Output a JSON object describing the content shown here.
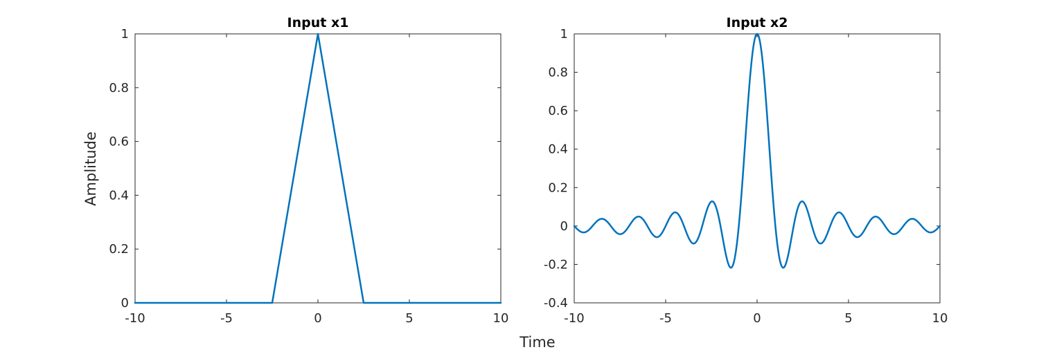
{
  "figure": {
    "background": "#ffffff",
    "shared_xlabel": "Time",
    "shared_ylabel": "Amplitude"
  },
  "chart_data": [
    {
      "type": "line",
      "title": "Input x1",
      "xlabel": "",
      "ylabel": "Amplitude",
      "xlim": [
        -10,
        10
      ],
      "ylim": [
        0,
        1
      ],
      "xticks": [
        -10,
        -5,
        0,
        5,
        10
      ],
      "xtick_labels": [
        "-10",
        "-5",
        "0",
        "5",
        "10"
      ],
      "yticks": [
        0,
        0.2,
        0.4,
        0.6,
        0.8,
        1
      ],
      "ytick_labels": [
        "0",
        "0.2",
        "0.4",
        "0.6",
        "0.8",
        "1"
      ],
      "grid": false,
      "series": [
        {
          "color": "#0072bd",
          "x": [
            -10,
            -2.5,
            0,
            2.5,
            10
          ],
          "y": [
            0,
            0,
            1,
            0,
            0
          ]
        }
      ]
    },
    {
      "type": "line",
      "title": "Input x2",
      "xlabel": "Time",
      "ylabel": "",
      "xlim": [
        -10,
        10
      ],
      "ylim": [
        -0.4,
        1
      ],
      "xticks": [
        -10,
        -5,
        0,
        5,
        10
      ],
      "xtick_labels": [
        "-10",
        "-5",
        "0",
        "5",
        "10"
      ],
      "yticks": [
        -0.4,
        -0.2,
        0,
        0.2,
        0.4,
        0.6,
        0.8,
        1
      ],
      "ytick_labels": [
        "-0.4",
        "-0.2",
        "0",
        "0.2",
        "0.4",
        "0.6",
        "0.8",
        "1"
      ],
      "grid": false,
      "series": [
        {
          "color": "#0072bd",
          "x": [
            -10,
            -9.5,
            -9,
            -8.5,
            -8,
            -7.5,
            -7,
            -6.5,
            -6,
            -5.5,
            -5,
            -4.5,
            -4,
            -3.5,
            -3,
            -2.5,
            -2,
            -1.5,
            -1.25,
            -1,
            -0.75,
            -0.5,
            -0.25,
            0,
            0.25,
            0.5,
            0.75,
            1,
            1.25,
            1.5,
            2,
            2.5,
            3,
            3.5,
            4,
            4.5,
            5,
            5.5,
            6,
            6.5,
            7,
            7.5,
            8,
            8.5,
            9,
            9.5,
            10
          ],
          "y": [
            0,
            -0.034,
            0,
            0.037,
            0,
            -0.042,
            0,
            0.049,
            0,
            -0.058,
            0,
            0.071,
            0,
            -0.091,
            0,
            0.127,
            0,
            -0.212,
            -0.18,
            0,
            0.3,
            0.637,
            0.9,
            1,
            0.9,
            0.637,
            0.3,
            0,
            -0.18,
            -0.212,
            0,
            0.127,
            0,
            -0.091,
            0,
            0.071,
            0,
            -0.058,
            0,
            0.049,
            0,
            -0.042,
            0,
            0.037,
            0,
            -0.034,
            0
          ]
        }
      ]
    }
  ]
}
